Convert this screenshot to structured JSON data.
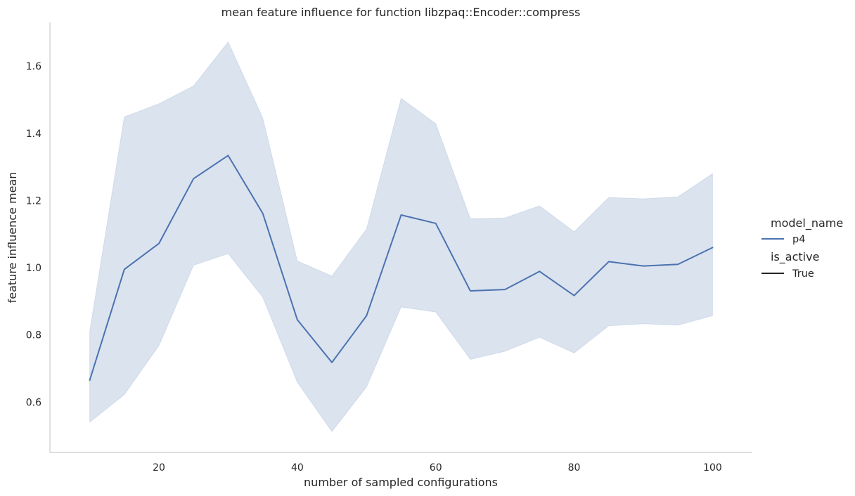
{
  "chart_data": {
    "type": "line",
    "title": "mean feature influence for function libzpaq::Encoder::compress",
    "xlabel": "number of sampled configurations",
    "ylabel": "feature influence mean",
    "xlim": [
      4.25,
      105.75
    ],
    "ylim": [
      0.45,
      1.73
    ],
    "xticks": [
      20,
      40,
      60,
      80,
      100
    ],
    "yticks": [
      0.6,
      0.8,
      1.0,
      1.2,
      1.4,
      1.6
    ],
    "xtick_labels": [
      "20",
      "40",
      "60",
      "80",
      "100"
    ],
    "ytick_labels": [
      "0.6",
      "0.8",
      "1.0",
      "1.2",
      "1.4",
      "1.6"
    ],
    "grid": false,
    "legend_position": "right",
    "legend": {
      "hue_title": "model_name",
      "style_title": "is_active",
      "entries": [
        {
          "group": "model_name",
          "label": "p4",
          "color": "#4c72b0"
        },
        {
          "group": "is_active",
          "label": "True",
          "color": "#262626"
        }
      ]
    },
    "series": [
      {
        "name": "p4",
        "color": "#4c72b0",
        "band_color": "#4c72b0",
        "x": [
          10,
          15,
          20,
          25,
          30,
          35,
          40,
          45,
          50,
          55,
          60,
          65,
          70,
          75,
          80,
          85,
          90,
          95,
          100
        ],
        "y": [
          0.665,
          0.995,
          1.072,
          1.265,
          1.334,
          1.162,
          0.845,
          0.718,
          0.857,
          1.157,
          1.132,
          0.931,
          0.935,
          0.989,
          0.917,
          1.018,
          1.005,
          1.01,
          1.06
        ],
        "ci_lower": [
          0.54,
          0.622,
          0.768,
          1.007,
          1.042,
          0.912,
          0.659,
          0.512,
          0.645,
          0.883,
          0.868,
          0.727,
          0.751,
          0.793,
          0.746,
          0.827,
          0.833,
          0.829,
          0.857
        ],
        "ci_upper": [
          0.81,
          1.449,
          1.488,
          1.541,
          1.672,
          1.446,
          1.02,
          0.975,
          1.115,
          1.504,
          1.429,
          1.146,
          1.148,
          1.184,
          1.107,
          1.209,
          1.205,
          1.211,
          1.28
        ]
      }
    ]
  }
}
